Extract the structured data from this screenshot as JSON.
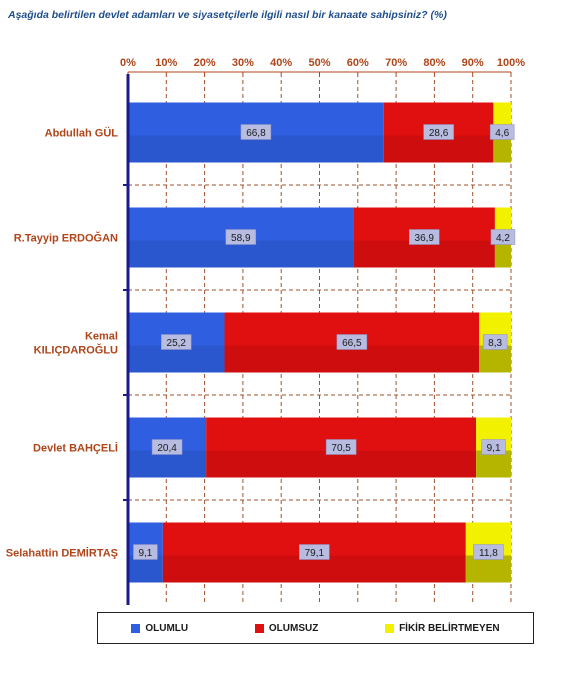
{
  "title": "Aşağıda belirtilen devlet adamları ve siyasetçilerle ilgili nasıl bir kanaate sahipsiniz? (%)",
  "colors": {
    "olumlu": "#2f5fe0",
    "olumsuz": "#e01010",
    "fikir": "#f2f200",
    "axis": "#1a1a8c",
    "grid": "#a0522d",
    "text": "#b0451a"
  },
  "chart_data": {
    "type": "bar",
    "orientation": "horizontal",
    "stacked": true,
    "title": "Aşağıda belirtilen devlet adamları ve siyasetçilerle ilgili nasıl bir kanaate sahipsiniz? (%)",
    "xlim": [
      0,
      100
    ],
    "xticks": [
      "0%",
      "10%",
      "20%",
      "30%",
      "40%",
      "50%",
      "60%",
      "70%",
      "80%",
      "90%",
      "100%"
    ],
    "categories": [
      [
        "Abdullah GÜL"
      ],
      [
        "R.Tayyip ERDOĞAN"
      ],
      [
        "Kemal",
        "KILIÇDAROĞLU"
      ],
      [
        "Devlet BAHÇELİ"
      ],
      [
        "Selahattin DEMİRTAŞ"
      ]
    ],
    "series": [
      {
        "name": "OLUMLU",
        "values": [
          66.8,
          58.9,
          25.2,
          20.4,
          9.1
        ],
        "labels": [
          "66,8",
          "58,9",
          "25,2",
          "20,4",
          "9,1"
        ]
      },
      {
        "name": "OLUMSUZ",
        "values": [
          28.6,
          36.9,
          66.5,
          70.5,
          79.1
        ],
        "labels": [
          "28,6",
          "36,9",
          "66,5",
          "70,5",
          "79,1"
        ]
      },
      {
        "name": "FİKİR BELİRTMEYEN",
        "values": [
          4.6,
          4.2,
          8.3,
          9.1,
          11.8
        ],
        "labels": [
          "4,6",
          "4,2",
          "8,3",
          "9,1",
          "11,8"
        ]
      }
    ],
    "grid": true,
    "legend": "bottom"
  }
}
